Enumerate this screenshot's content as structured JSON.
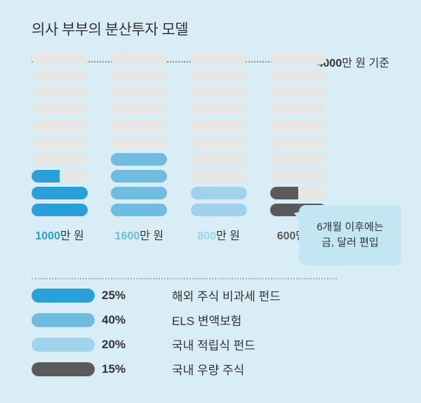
{
  "title": "의사 부부의 분산투자 모델",
  "baseline": {
    "amount": "4000",
    "unit": "만 원 기준"
  },
  "chart": {
    "total_segments": 10,
    "segment_height": 18,
    "segment_gap": 6,
    "segment_radius": 9,
    "empty_color": "#e6e6e4",
    "background": "#d8edf5",
    "columns": [
      {
        "label_amount": "1000",
        "label_unit": "만 원",
        "label_color": "#2aa0da",
        "fills": [
          {
            "idx": 0,
            "color": "#2aa0da",
            "frac": 1.0
          },
          {
            "idx": 1,
            "color": "#2aa0da",
            "frac": 1.0
          },
          {
            "idx": 2,
            "color": "#2aa0da",
            "frac": 0.5
          }
        ]
      },
      {
        "label_amount": "1600",
        "label_unit": "만 원",
        "label_color": "#6fbce0",
        "fills": [
          {
            "idx": 0,
            "color": "#6fbce0",
            "frac": 1.0
          },
          {
            "idx": 1,
            "color": "#6fbce0",
            "frac": 1.0
          },
          {
            "idx": 2,
            "color": "#6fbce0",
            "frac": 1.0
          },
          {
            "idx": 3,
            "color": "#6fbce0",
            "frac": 1.0
          }
        ]
      },
      {
        "label_amount": "800",
        "label_unit": "만 원",
        "label_color": "#a0d2ec",
        "fills": [
          {
            "idx": 0,
            "color": "#a0d2ec",
            "frac": 1.0
          },
          {
            "idx": 1,
            "color": "#a0d2ec",
            "frac": 1.0
          }
        ]
      },
      {
        "label_amount": "600",
        "label_unit": "만 원",
        "label_color": "#5a5a5a",
        "fills": [
          {
            "idx": 0,
            "color": "#5a5a5a",
            "frac": 1.0
          },
          {
            "idx": 1,
            "color": "#5a5a5a",
            "frac": 0.5
          }
        ]
      }
    ]
  },
  "callout": {
    "text": "6개월 이후에는\n금, 달러 편입",
    "bg": "#c3e6f3"
  },
  "legend": [
    {
      "color": "#2aa0da",
      "pct": "25%",
      "name": "해외 주식 비과세 펀드"
    },
    {
      "color": "#6fbce0",
      "pct": "40%",
      "name": "ELS 변액보험"
    },
    {
      "color": "#a0d2ec",
      "pct": "20%",
      "name": "국내 적립식 펀드"
    },
    {
      "color": "#5a5a5a",
      "pct": "15%",
      "name": "국내 우량 주식"
    }
  ]
}
